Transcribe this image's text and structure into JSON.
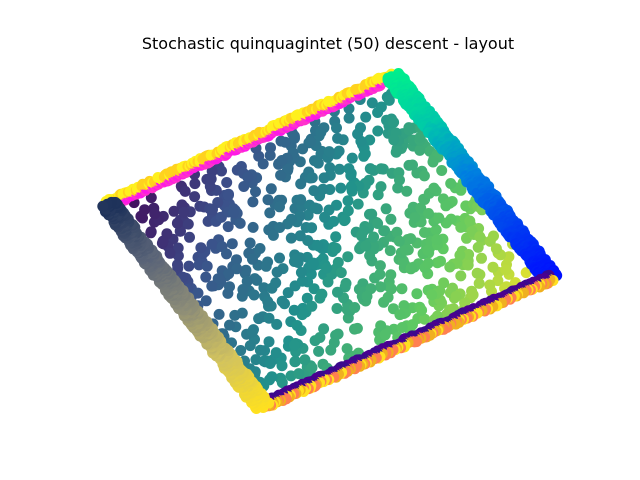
{
  "chart_data": {
    "type": "scatter",
    "title": "Stochastic quinquagintet (50) descent - layout",
    "xlabel": "",
    "ylabel": "",
    "axes_visible": false,
    "grid": false,
    "legend": "none",
    "corners": {
      "top_left": [
        0,
        1
      ],
      "top_right": [
        1,
        1
      ],
      "bottom_right": [
        1,
        0
      ],
      "bottom_left": [
        0,
        0
      ]
    },
    "interior": {
      "n_points": 700,
      "colormap": "viridis",
      "color_rule": "position along the top-left to bottom-right diagonal",
      "colors": [
        "#440154",
        "#3b528b",
        "#21918c",
        "#5ec962",
        "#fde725"
      ]
    },
    "edges": [
      {
        "name": "top",
        "from": [
          0,
          1
        ],
        "to": [
          1,
          1
        ],
        "inner_colors": [
          "#ff19e6",
          "#ff33cc"
        ],
        "outer_colors": [
          "#ffd21e",
          "#fff01e"
        ]
      },
      {
        "name": "right",
        "from": [
          1,
          1
        ],
        "to": [
          1,
          0
        ],
        "gradient": [
          "#00f08c",
          "#00c8aa",
          "#0080e0",
          "#0040f0",
          "#0010ff"
        ]
      },
      {
        "name": "bottom",
        "from": [
          1,
          0
        ],
        "to": [
          0,
          0
        ],
        "inner_colors": [
          "#3a0a8c",
          "#4b0090"
        ],
        "outer_colors": [
          "#f0b020",
          "#ffe020",
          "#ff8050"
        ]
      },
      {
        "name": "left",
        "from": [
          0,
          0
        ],
        "to": [
          0,
          1
        ],
        "gradient": [
          "#ffe11e",
          "#d2c35f",
          "#8c8c78",
          "#5a6478",
          "#1e325a"
        ]
      }
    ]
  }
}
